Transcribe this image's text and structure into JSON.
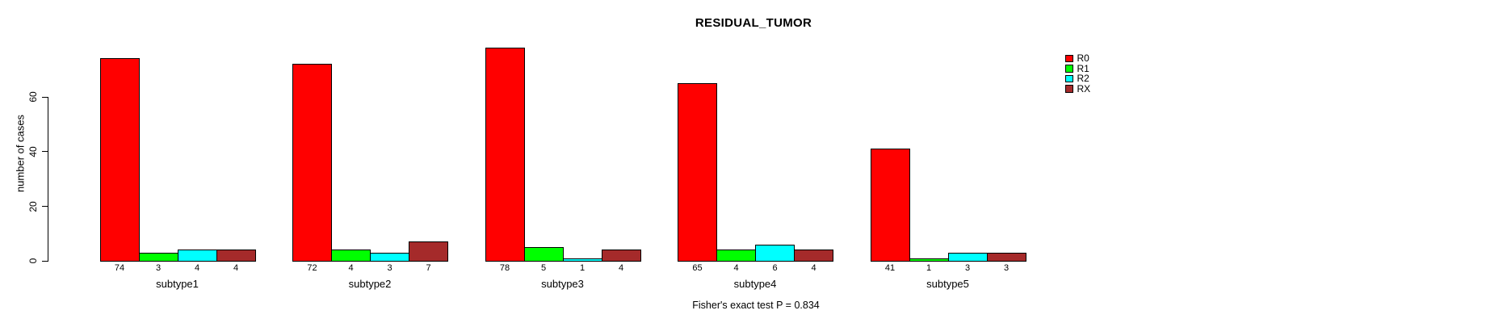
{
  "title": "RESIDUAL_TUMOR",
  "footnote": "Fisher's exact test P = 0.834",
  "chart_data": {
    "type": "bar",
    "title": "RESIDUAL_TUMOR",
    "xlabel": "",
    "ylabel": "number of cases",
    "categories": [
      "subtype1",
      "subtype2",
      "subtype3",
      "subtype4",
      "subtype5"
    ],
    "series": [
      {
        "name": "R0",
        "color": "#FF0000",
        "values": [
          74,
          72,
          78,
          65,
          41
        ]
      },
      {
        "name": "R1",
        "color": "#00FF00",
        "values": [
          3,
          4,
          5,
          4,
          1
        ]
      },
      {
        "name": "R2",
        "color": "#00FFFF",
        "values": [
          4,
          3,
          1,
          6,
          3
        ]
      },
      {
        "name": "RX",
        "color": "#A52A2A",
        "values": [
          4,
          7,
          4,
          4,
          3
        ]
      }
    ],
    "bar_value_labels": [
      [
        74,
        3,
        4,
        4
      ],
      [
        72,
        4,
        3,
        7
      ],
      [
        78,
        5,
        1,
        4
      ],
      [
        65,
        4,
        6,
        4
      ],
      [
        41,
        1,
        3,
        3
      ]
    ],
    "ylim": [
      0,
      78
    ],
    "yticks": [
      0,
      20,
      40,
      60
    ],
    "grid": false,
    "legend_position": "top-right",
    "annotation": "Fisher's exact test P = 0.834"
  }
}
